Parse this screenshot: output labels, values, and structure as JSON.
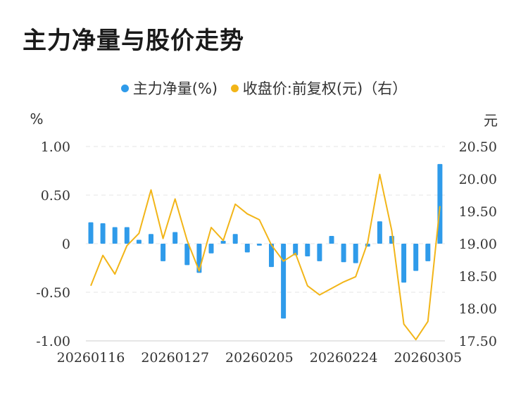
{
  "title": "主力净量与股价走势",
  "chart_data": {
    "type": "bar+line",
    "legend_placement": "top-center",
    "grid": true,
    "y_left_unit": "%",
    "y_right_unit": "元",
    "y_left_ticks": [
      "1.00",
      "0.50",
      "0",
      "-0.50",
      "-1.00"
    ],
    "y_left_tick_values": [
      1.0,
      0.5,
      0,
      -0.5,
      -1.0
    ],
    "y_left_range": [
      -1.0,
      1.0
    ],
    "y_right_ticks": [
      "20.50",
      "20.00",
      "19.50",
      "19.00",
      "18.50",
      "18.00",
      "17.50"
    ],
    "y_right_tick_values": [
      20.5,
      20.0,
      19.5,
      19.0,
      18.5,
      18.0,
      17.5
    ],
    "y_right_range": [
      17.5,
      20.5
    ],
    "x_tick_labels": [
      "20260116",
      "20260127",
      "20260205",
      "20260224",
      "20260305"
    ],
    "x_tick_indices": [
      0,
      7,
      14,
      21,
      28
    ],
    "series": [
      {
        "name": "主力净量(%)",
        "type": "bar",
        "color": "#2f9bea",
        "values": [
          0.22,
          0.21,
          0.17,
          0.17,
          0.04,
          0.1,
          -0.18,
          0.12,
          -0.22,
          -0.3,
          -0.1,
          0.03,
          0.1,
          -0.09,
          -0.02,
          -0.24,
          -0.77,
          -0.12,
          -0.13,
          -0.18,
          0.08,
          -0.19,
          -0.2,
          -0.03,
          0.23,
          0.08,
          -0.4,
          -0.28,
          -0.18,
          0.82
        ]
      },
      {
        "name": "收盘价:前复权(元)（右）",
        "type": "line",
        "color": "#f2b518",
        "values": [
          18.35,
          18.82,
          18.53,
          18.97,
          19.16,
          19.83,
          19.08,
          19.69,
          19.05,
          18.58,
          19.25,
          19.05,
          19.61,
          19.46,
          19.37,
          18.98,
          18.73,
          18.85,
          18.35,
          18.21,
          18.31,
          18.41,
          18.49,
          19.02,
          20.07,
          19.2,
          17.76,
          17.52,
          17.8,
          19.58
        ]
      }
    ]
  }
}
